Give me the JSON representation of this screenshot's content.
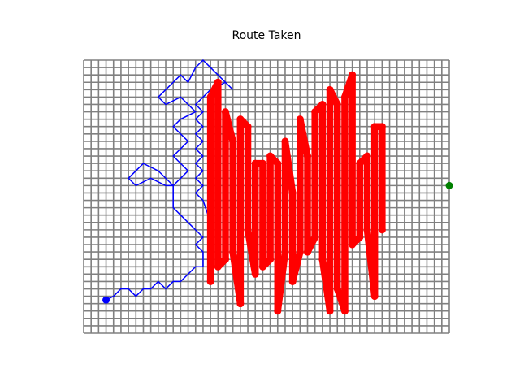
{
  "chart_data": {
    "type": "route",
    "title": "Route Taken",
    "xlim": [
      0,
      49
    ],
    "ylim": [
      0,
      37
    ],
    "grid": true,
    "grid_color": "#808080",
    "xticks": [
      0,
      1,
      2,
      3,
      4,
      5,
      6,
      7,
      8,
      9,
      10,
      11,
      12,
      13,
      14,
      15,
      16,
      17,
      18,
      19,
      20,
      21,
      22,
      23,
      24,
      25,
      26,
      27,
      28,
      29,
      30,
      31,
      32,
      33,
      34,
      35,
      36,
      37,
      38,
      39,
      40,
      41,
      42,
      43,
      44,
      45,
      46,
      47,
      48,
      49
    ],
    "yticks": [
      0,
      1,
      2,
      3,
      4,
      5,
      6,
      7,
      8,
      9,
      10,
      11,
      12,
      13,
      14,
      15,
      16,
      17,
      18,
      19,
      20,
      21,
      22,
      23,
      24,
      25,
      26,
      27,
      28,
      29,
      30,
      31,
      32,
      33,
      34,
      35,
      36,
      37
    ],
    "series": [
      {
        "color": "blue",
        "style": "line",
        "x": [
          3,
          4,
          5,
          6,
          7,
          8,
          9,
          10,
          11,
          12,
          13,
          14,
          15,
          16,
          16,
          15,
          16,
          15,
          14,
          13,
          12,
          12,
          10,
          8,
          7,
          6,
          7,
          9,
          11,
          12,
          13,
          14,
          13,
          12,
          13,
          14,
          13,
          12,
          13,
          15,
          14,
          13,
          11,
          10,
          11,
          12,
          13,
          14,
          15,
          16,
          17,
          18,
          19,
          20,
          19,
          17,
          16,
          15,
          16,
          15,
          16,
          15,
          16,
          15,
          16,
          15,
          16,
          15,
          16,
          15,
          16,
          17,
          17
        ],
        "y": [
          4.5,
          5,
          6,
          6,
          5,
          6,
          6,
          7,
          6,
          7,
          7,
          8,
          9,
          9,
          11,
          12,
          13,
          14,
          15,
          16,
          17,
          20,
          22,
          23,
          22,
          21,
          20,
          21,
          20,
          20,
          21,
          22,
          23,
          24,
          25,
          26,
          27,
          28,
          29,
          30,
          31,
          32,
          31,
          32,
          33,
          34,
          35,
          34,
          36,
          37,
          36,
          35,
          34,
          33,
          34,
          33,
          32,
          31,
          30,
          29,
          28,
          27,
          26,
          25,
          24,
          23,
          22,
          21,
          20,
          19,
          18,
          15,
          7
        ]
      },
      {
        "color": "red",
        "style": "beads",
        "x": [
          17,
          17,
          18,
          18,
          19,
          19,
          20,
          20,
          21,
          21,
          22,
          22,
          23,
          23,
          24,
          24,
          25,
          25,
          26,
          26,
          27,
          27,
          28,
          28,
          29,
          29,
          30,
          30,
          31,
          31,
          32,
          32,
          33,
          33,
          34,
          34,
          35,
          35,
          36,
          36,
          37,
          37,
          38,
          38,
          39,
          39,
          40,
          40
        ],
        "y": [
          7,
          32,
          34,
          9,
          10,
          30,
          26,
          11,
          4,
          29,
          28,
          14,
          8,
          23,
          23,
          9,
          10,
          24,
          23,
          3,
          11,
          26,
          19,
          7,
          11,
          29,
          24,
          11,
          13,
          30,
          31,
          10,
          3,
          33,
          31,
          6,
          3,
          32,
          35,
          12,
          13,
          23,
          24,
          14,
          5,
          28,
          28,
          14
        ]
      },
      {
        "color": "blue",
        "style": "point",
        "x": [
          3
        ],
        "y": [
          4.5
        ]
      },
      {
        "color": "green",
        "style": "point",
        "x": [
          49
        ],
        "y": [
          20
        ]
      }
    ]
  }
}
